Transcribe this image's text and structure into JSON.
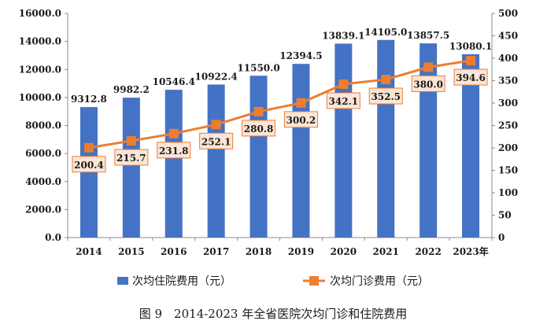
{
  "chart_data": {
    "type": "bar",
    "categories": [
      "2014",
      "2015",
      "2016",
      "2017",
      "2018",
      "2019",
      "2020",
      "2021",
      "2022",
      "2023年"
    ],
    "series": [
      {
        "name": "次均住院费用（元）",
        "type": "bar",
        "axis": "left",
        "color": "#4472C4",
        "values": [
          9312.8,
          9982.2,
          10546.4,
          10922.4,
          11550.0,
          12394.5,
          13839.1,
          14105.0,
          13857.5,
          13080.1
        ],
        "labels": [
          "9312.8",
          "9982.2",
          "10546.4",
          "10922.4",
          "11550.0",
          "12394.5",
          "13839.1",
          "14105.0",
          "13857.5",
          "13080.1"
        ]
      },
      {
        "name": "次均门诊费用（元）",
        "type": "line",
        "axis": "right",
        "color": "#ED7D31",
        "values": [
          200.4,
          215.7,
          231.8,
          252.1,
          280.8,
          300.2,
          342.1,
          352.5,
          380.0,
          394.6
        ],
        "labels": [
          "200.4",
          "215.7",
          "231.8",
          "252.1",
          "280.8",
          "300.2",
          "342.1",
          "352.5",
          "380.0",
          "394.6"
        ]
      }
    ],
    "y_left": {
      "ylim": [
        0,
        16000
      ],
      "ticks": [
        "0.0",
        "2000.0",
        "4000.0",
        "6000.0",
        "8000.0",
        "10000.0",
        "12000.0",
        "14000.0",
        "16000.0"
      ]
    },
    "y_right": {
      "ylim": [
        0,
        500
      ],
      "ticks": [
        "0",
        "50",
        "100",
        "150",
        "200",
        "250",
        "300",
        "350",
        "400",
        "450",
        "500"
      ]
    },
    "grid": false,
    "legend_position": "bottom",
    "caption": "图 9　2014-2023 年全省医院次均门诊和住院费用"
  }
}
